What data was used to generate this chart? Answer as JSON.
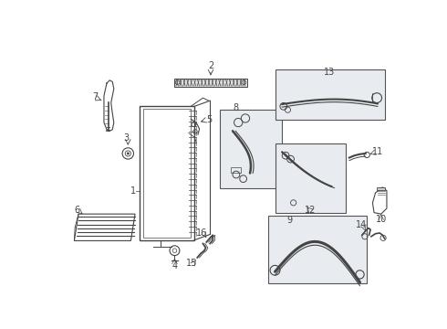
{
  "background_color": "#ffffff",
  "line_color": "#444444",
  "box_color": "#e8ecf0",
  "box_edge_color": "#555555",
  "lw_thick": 1.5,
  "lw_med": 1.0,
  "lw_thin": 0.6
}
